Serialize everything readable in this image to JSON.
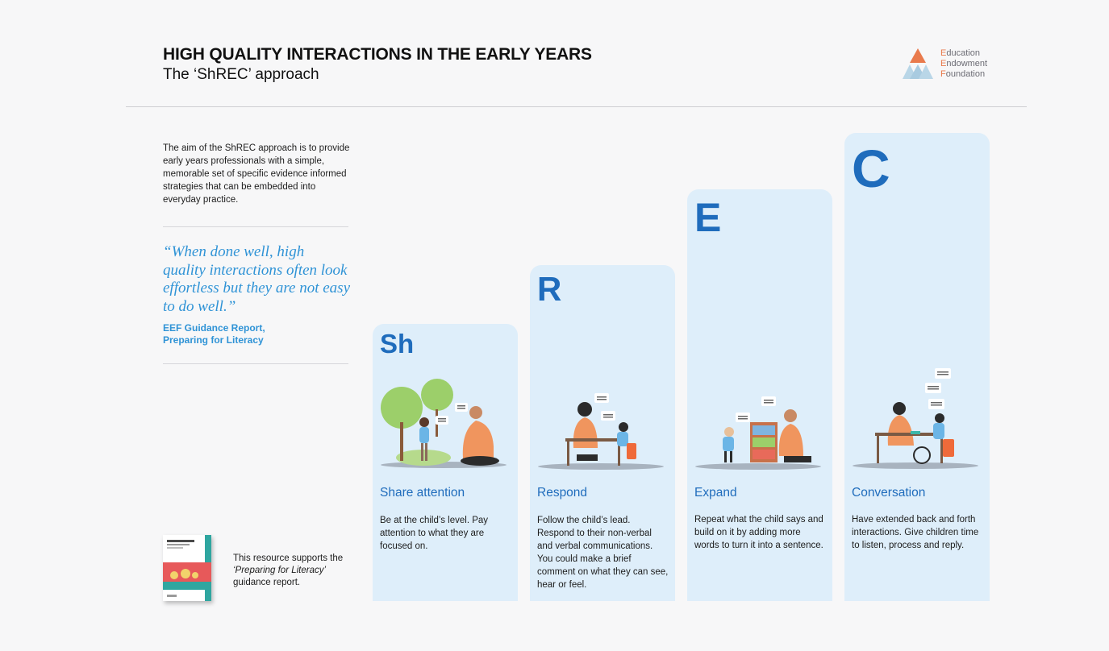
{
  "header": {
    "title": "HIGH QUALITY INTERACTIONS IN THE EARLY YEARS",
    "subtitle": "The ‘ShREC’ approach"
  },
  "logo": {
    "lines": [
      "ducation",
      "ndowment",
      "oundation"
    ],
    "initials": [
      "E",
      "E",
      "F"
    ],
    "colors": {
      "accent": "#e97a4c",
      "light": "#a9cbe0"
    }
  },
  "intro": "The aim of the ShREC approach is to provide early years professionals with a simple, memorable set of specific evidence informed strategies that can be embedded into everyday practice.",
  "quote": {
    "text": "“When done well, high quality interactions often look effortless but they are not easy to do well.”",
    "source_line1": "EEF Guidance Report,",
    "source_line2": "Preparing for Literacy"
  },
  "support": {
    "prefix": "This resource supports the ",
    "report": "‘Preparing for Literacy’",
    "suffix": " guidance report."
  },
  "cards": [
    {
      "letter": "Sh",
      "title": "Share attention",
      "desc": "Be at the child’s level. Pay attention to what they are focused on."
    },
    {
      "letter": "R",
      "title": "Respond",
      "desc": "Follow the child’s lead. Respond to their non-verbal and verbal communications. You could make a brief comment on what they can see, hear or feel."
    },
    {
      "letter": "E",
      "title": "Expand",
      "desc": "Repeat what the child says and build on it by adding more words to turn it into a sentence."
    },
    {
      "letter": "C",
      "title": "Conversation",
      "desc": "Have extended back and forth interactions. Give children time to listen, process and reply."
    }
  ],
  "colors": {
    "card_bg": "#deeefa",
    "heading_blue": "#1f6cbc",
    "quote_blue": "#2f93d6",
    "adult_orange": "#f0955e",
    "tree_green": "#9ccf6a"
  }
}
